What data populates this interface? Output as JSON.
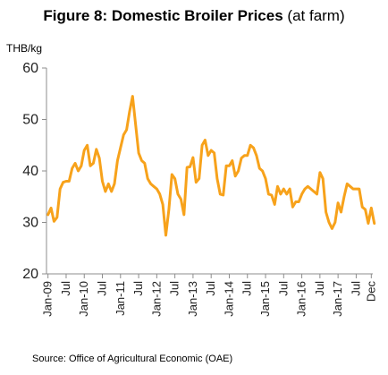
{
  "title_main": "Figure 8: Domestic Broiler Prices",
  "title_suffix": " (at farm)",
  "source": "Source: Office of Agricultural Economic (OAE)",
  "chart_data": {
    "type": "line",
    "ylabel": "THB/kg",
    "ylim": [
      20,
      60
    ],
    "yticks": [
      20,
      30,
      40,
      50,
      60
    ],
    "xtick_labels": [
      "Jan-09",
      "Jul",
      "Jan-10",
      "Jul",
      "Jan-11",
      "Jul",
      "Jan-12",
      "Jul",
      "Jan-13",
      "Jul",
      "Jan-14",
      "Jul",
      "Jan-15",
      "Jul",
      "Jan-16",
      "Jul",
      "Jan-17",
      "Jul",
      "Dec"
    ],
    "line_color": "#F7A21B",
    "grid": false,
    "legend": "none",
    "series": [
      {
        "values": [
          31.5,
          32.8,
          30.2,
          31.0,
          36.5,
          37.8,
          38.0,
          38.0,
          40.5,
          41.5,
          40.0,
          41.0,
          44.0,
          45.0,
          41.0,
          41.5,
          44.2,
          42.5,
          38.0,
          36.0,
          37.5,
          36.0,
          37.5,
          42.0,
          44.5,
          47.0,
          48.0,
          51.5,
          54.5,
          49.0,
          43.5,
          42.0,
          41.5,
          38.5,
          37.5,
          37.0,
          36.5,
          35.5,
          33.5,
          27.5,
          32.5,
          39.3,
          38.5,
          35.5,
          34.5,
          31.5,
          40.7,
          40.8,
          42.6,
          37.8,
          38.5,
          45.0,
          46.0,
          43.0,
          44.0,
          43.5,
          38.5,
          35.5,
          35.3,
          41.0,
          41.0,
          42.0,
          39.0,
          40.0,
          42.5,
          43.0,
          43.0,
          45.0,
          44.5,
          43.0,
          40.5,
          40.0,
          38.5,
          35.5,
          35.3,
          33.5,
          37.0,
          35.5,
          36.5,
          35.5,
          36.5,
          33.0,
          34.0,
          34.0,
          35.5,
          36.5,
          37.0,
          36.5,
          36.0,
          35.5,
          39.7,
          38.5,
          32.0,
          30.0,
          28.8,
          30.0,
          33.8,
          32.0,
          35.0,
          37.5,
          37.0,
          36.5,
          36.5,
          36.5,
          33.0,
          32.5,
          29.8,
          32.8,
          29.8
        ]
      }
    ]
  }
}
